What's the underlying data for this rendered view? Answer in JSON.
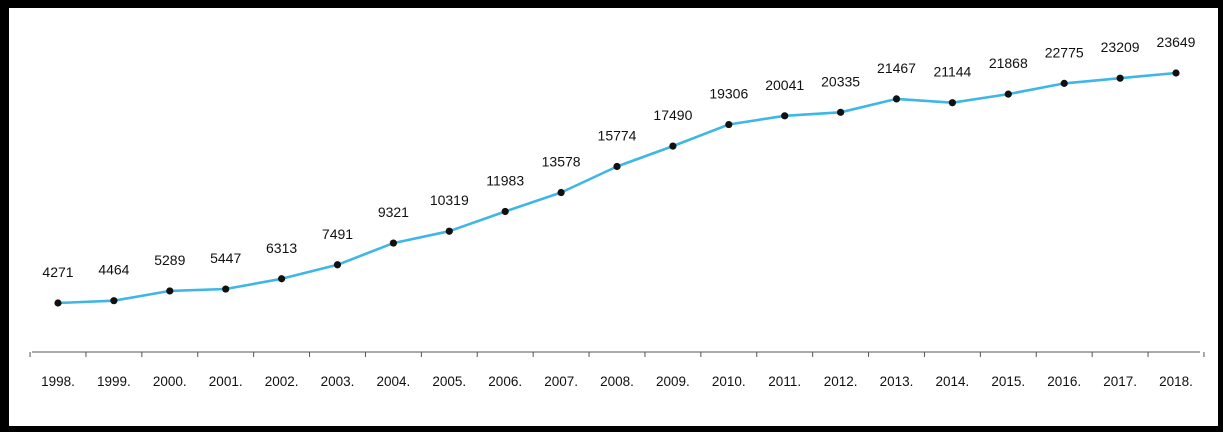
{
  "chart_data": {
    "type": "line",
    "title": "",
    "xlabel": "",
    "ylabel": "",
    "categories": [
      "1998.",
      "1999.",
      "2000.",
      "2001.",
      "2002.",
      "2003.",
      "2004.",
      "2005.",
      "2006.",
      "2007.",
      "2008.",
      "2009.",
      "2010.",
      "2011.",
      "2012.",
      "2013.",
      "2014.",
      "2015.",
      "2016.",
      "2017.",
      "2018."
    ],
    "series": [
      {
        "values": [
          4271,
          4464,
          5289,
          5447,
          6313,
          7491,
          9321,
          10319,
          11983,
          13578,
          15774,
          17490,
          19306,
          20041,
          20335,
          21467,
          21144,
          21868,
          22775,
          23209,
          23649
        ]
      }
    ],
    "data_labels": [
      "4271",
      "4464",
      "5289",
      "5447",
      "6313",
      "7491",
      "9321",
      "10319",
      "11983",
      "13578",
      "15774",
      "17490",
      "19306",
      "20041",
      "20335",
      "21467",
      "21144",
      "21868",
      "22775",
      "23209",
      "23649"
    ],
    "grid": false,
    "legend": "none",
    "colors": {
      "line": "#3fb6e6",
      "marker": "#111111",
      "axis": "#555555",
      "frame": "#000000"
    }
  }
}
